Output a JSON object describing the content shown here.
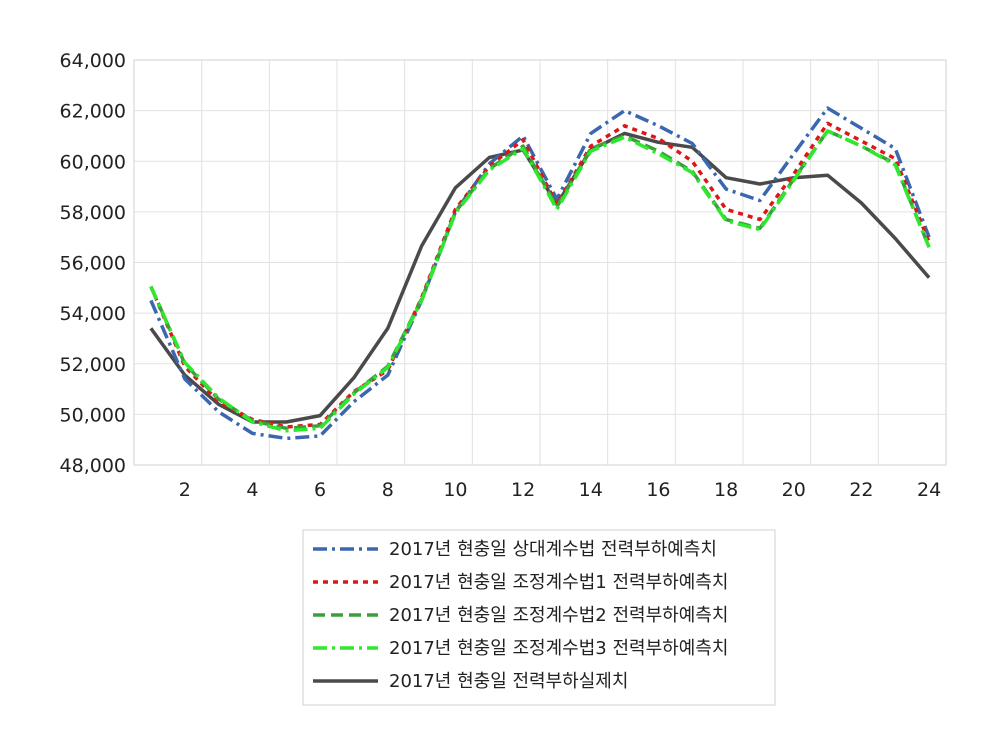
{
  "chart_data": {
    "type": "line",
    "x": [
      1,
      2,
      3,
      4,
      5,
      6,
      7,
      8,
      9,
      10,
      11,
      12,
      13,
      14,
      15,
      16,
      17,
      18,
      19,
      20,
      21,
      22,
      23,
      24
    ],
    "x_ticks": [
      2,
      4,
      6,
      8,
      10,
      12,
      14,
      16,
      18,
      20,
      22,
      24
    ],
    "y_ticks": [
      "48,000",
      "50,000",
      "52,000",
      "54,000",
      "56,000",
      "58,000",
      "60,000",
      "62,000",
      "64,000"
    ],
    "ylim": [
      48000,
      64000
    ],
    "xlim": [
      0.5,
      24.5
    ],
    "grid": true,
    "legend_position": "bottom",
    "series": [
      {
        "name": "2017년 현충일 상대계수법 전력부하예측치",
        "color": "#3A67AF",
        "dash": "dashdot",
        "values": [
          54500,
          51400,
          50100,
          49250,
          49050,
          49150,
          50500,
          51550,
          54500,
          58000,
          59900,
          61000,
          58500,
          61100,
          62000,
          61400,
          60700,
          58900,
          58450,
          60300,
          62100,
          61300,
          60500,
          57000
        ]
      },
      {
        "name": "2017년 현충일 조정계수법1 전력부하예측치",
        "color": "#E01515",
        "dash": "dot",
        "values": [
          55050,
          51900,
          50500,
          49800,
          49500,
          49600,
          50900,
          51750,
          54600,
          58100,
          59800,
          60850,
          58300,
          60600,
          61400,
          60900,
          60000,
          58100,
          57700,
          59500,
          61500,
          60800,
          60100,
          56800
        ]
      },
      {
        "name": "2017년 현충일 조정계수법2 전력부하예측치",
        "color": "#3C9E3C",
        "dash": "dash",
        "values": [
          55050,
          52000,
          50600,
          49750,
          49450,
          49550,
          50850,
          51900,
          54550,
          58000,
          59700,
          60600,
          58200,
          60500,
          61000,
          60400,
          59600,
          57700,
          57350,
          59300,
          61200,
          60600,
          59900,
          56600
        ]
      },
      {
        "name": "2017년 현충일 조정계수법3 전력부하예측치",
        "color": "#2EE82E",
        "dash": "dashdot",
        "values": [
          55050,
          52050,
          50650,
          49700,
          49350,
          49450,
          50800,
          51850,
          54500,
          57950,
          59650,
          60500,
          58100,
          60400,
          60950,
          60300,
          59550,
          57650,
          57300,
          59250,
          61200,
          60600,
          59850,
          56600
        ]
      },
      {
        "name": "2017년 현충일 전력부하실제치",
        "color": "#4A4A4A",
        "dash": "solid",
        "values": [
          53400,
          51550,
          50400,
          49700,
          49700,
          49950,
          51450,
          53400,
          56650,
          58950,
          60150,
          60450,
          58300,
          60450,
          61100,
          60750,
          60550,
          59350,
          59100,
          59350,
          59450,
          58350,
          56950,
          55400
        ]
      }
    ]
  }
}
